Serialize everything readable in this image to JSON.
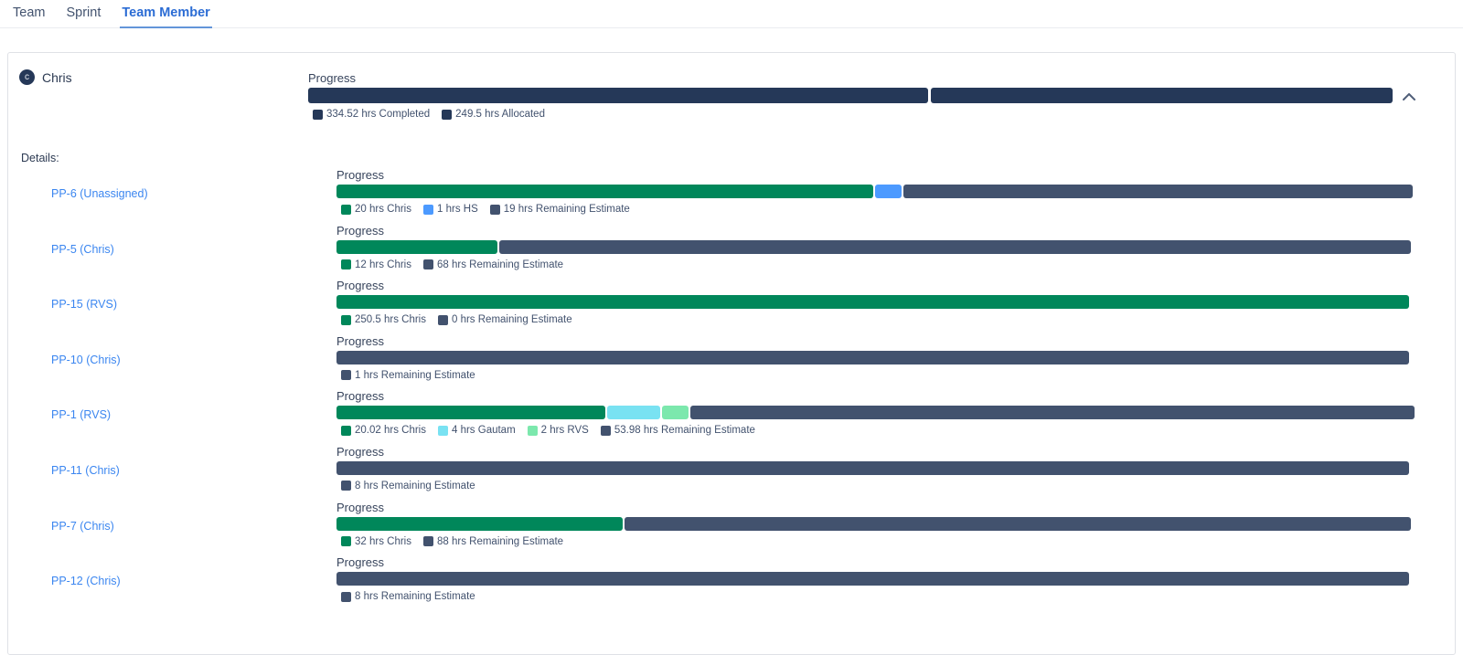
{
  "tabs": [
    {
      "label": "Team",
      "active": false
    },
    {
      "label": "Sprint",
      "active": false
    },
    {
      "label": "Team Member",
      "active": true
    }
  ],
  "labels": {
    "progress": "Progress",
    "details": "Details:"
  },
  "member": {
    "avatar_letter": "c",
    "name": "Chris",
    "segments": [
      {
        "label": "334.52 hrs Completed",
        "value": 334.52,
        "color": "#253858"
      },
      {
        "label": "249.5 hrs Allocated",
        "value": 249.5,
        "color": "#253858"
      }
    ]
  },
  "rows": [
    {
      "issue": "PP-6 (Unassigned)",
      "segments": [
        {
          "label": "20 hrs Chris",
          "value": 20,
          "color": "#00875a"
        },
        {
          "label": "1 hrs HS",
          "value": 1,
          "color": "#4c9aff"
        },
        {
          "label": "19 hrs Remaining Estimate",
          "value": 19,
          "color": "#42526e"
        }
      ]
    },
    {
      "issue": "PP-5 (Chris)",
      "segments": [
        {
          "label": "12 hrs Chris",
          "value": 12,
          "color": "#00875a"
        },
        {
          "label": "68 hrs Remaining Estimate",
          "value": 68,
          "color": "#42526e"
        }
      ]
    },
    {
      "issue": "PP-15 (RVS)",
      "segments": [
        {
          "label": "250.5 hrs Chris",
          "value": 250.5,
          "color": "#00875a"
        },
        {
          "label": "0 hrs Remaining Estimate",
          "value": 0,
          "color": "#42526e"
        }
      ]
    },
    {
      "issue": "PP-10 (Chris)",
      "segments": [
        {
          "label": "1 hrs Remaining Estimate",
          "value": 1,
          "color": "#42526e"
        }
      ]
    },
    {
      "issue": "PP-1 (RVS)",
      "segments": [
        {
          "label": "20.02 hrs Chris",
          "value": 20.02,
          "color": "#00875a"
        },
        {
          "label": "4 hrs Gautam",
          "value": 4,
          "color": "#79e2f2"
        },
        {
          "label": "2 hrs RVS",
          "value": 2,
          "color": "#7ce8ad"
        },
        {
          "label": "53.98 hrs Remaining Estimate",
          "value": 53.98,
          "color": "#42526e"
        }
      ]
    },
    {
      "issue": "PP-11 (Chris)",
      "segments": [
        {
          "label": "8 hrs Remaining Estimate",
          "value": 8,
          "color": "#42526e"
        }
      ]
    },
    {
      "issue": "PP-7 (Chris)",
      "segments": [
        {
          "label": "32 hrs Chris",
          "value": 32,
          "color": "#00875a"
        },
        {
          "label": "88 hrs Remaining Estimate",
          "value": 88,
          "color": "#42526e"
        }
      ]
    },
    {
      "issue": "PP-12 (Chris)",
      "segments": [
        {
          "label": "8 hrs Remaining Estimate",
          "value": 8,
          "color": "#42526e"
        }
      ]
    }
  ],
  "colors": {
    "completed_green": "#00875a",
    "member_navy": "#253858",
    "remaining_slate": "#42526e",
    "link_blue": "#3b86f0",
    "tab_active_blue": "#2b6cd4",
    "card_border": "#dfe1e6"
  }
}
